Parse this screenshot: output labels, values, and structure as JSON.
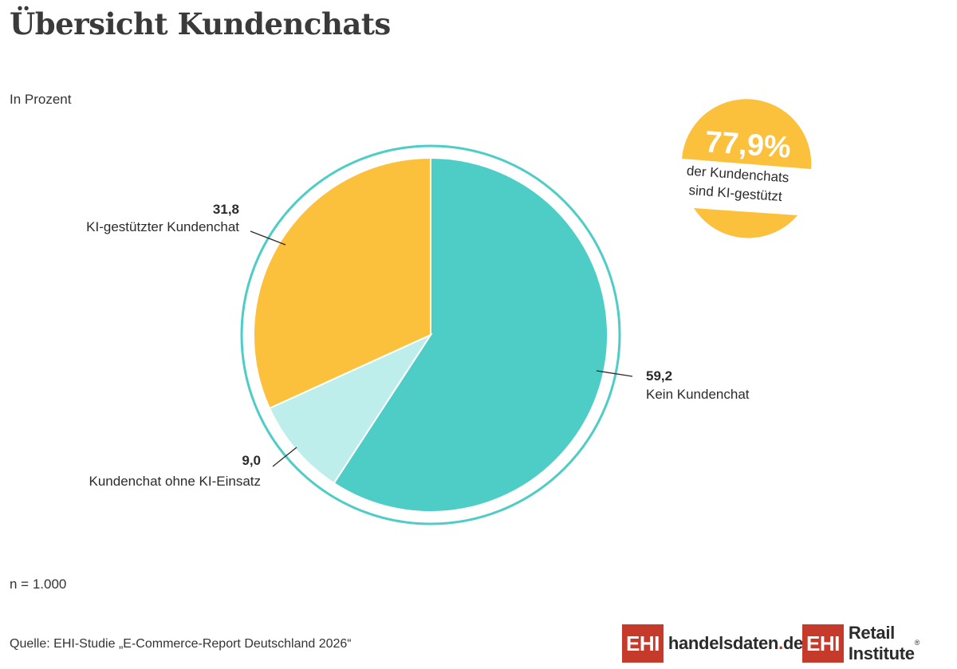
{
  "title": "Übersicht Kundenchats",
  "subtitle": "In Prozent",
  "sample_size": "n = 1.000",
  "source": "Quelle: EHI-Studie „E-Commerce-Report Deutschland 2026“",
  "callout": {
    "value": "77,9%",
    "line1": "der Kundenchats",
    "line2": "sind KI-gestützt",
    "color": "#fcc13c"
  },
  "logos": {
    "handelsdaten": {
      "box": "EHI",
      "text": "handelsdaten",
      "dot": ".",
      "tld": "de"
    },
    "retail": {
      "box": "EHI",
      "text": "Retail Institute",
      "reg": "®"
    }
  },
  "colors": {
    "kein": "#4ecdc6",
    "ohne_ki": "#bdeeeb",
    "ki": "#fcc13c",
    "ring": "#4ecdc6",
    "brand_red": "#c63a2b"
  },
  "chart_data": {
    "type": "pie",
    "unit": "In Prozent",
    "slices": [
      {
        "label": "Kein Kundenchat",
        "value": 59.2,
        "value_label": "59,2",
        "color": "#4ecdc6"
      },
      {
        "label": "Kundenchat ohne KI-Einsatz",
        "value": 9.0,
        "value_label": "9,0",
        "color": "#bdeeeb"
      },
      {
        "label": "KI-gestützter Kundenchat",
        "value": 31.8,
        "value_label": "31,8",
        "color": "#fcc13c"
      }
    ],
    "start": "12 o'clock",
    "direction": "clockwise",
    "outer_ring": true,
    "legend": "none"
  }
}
